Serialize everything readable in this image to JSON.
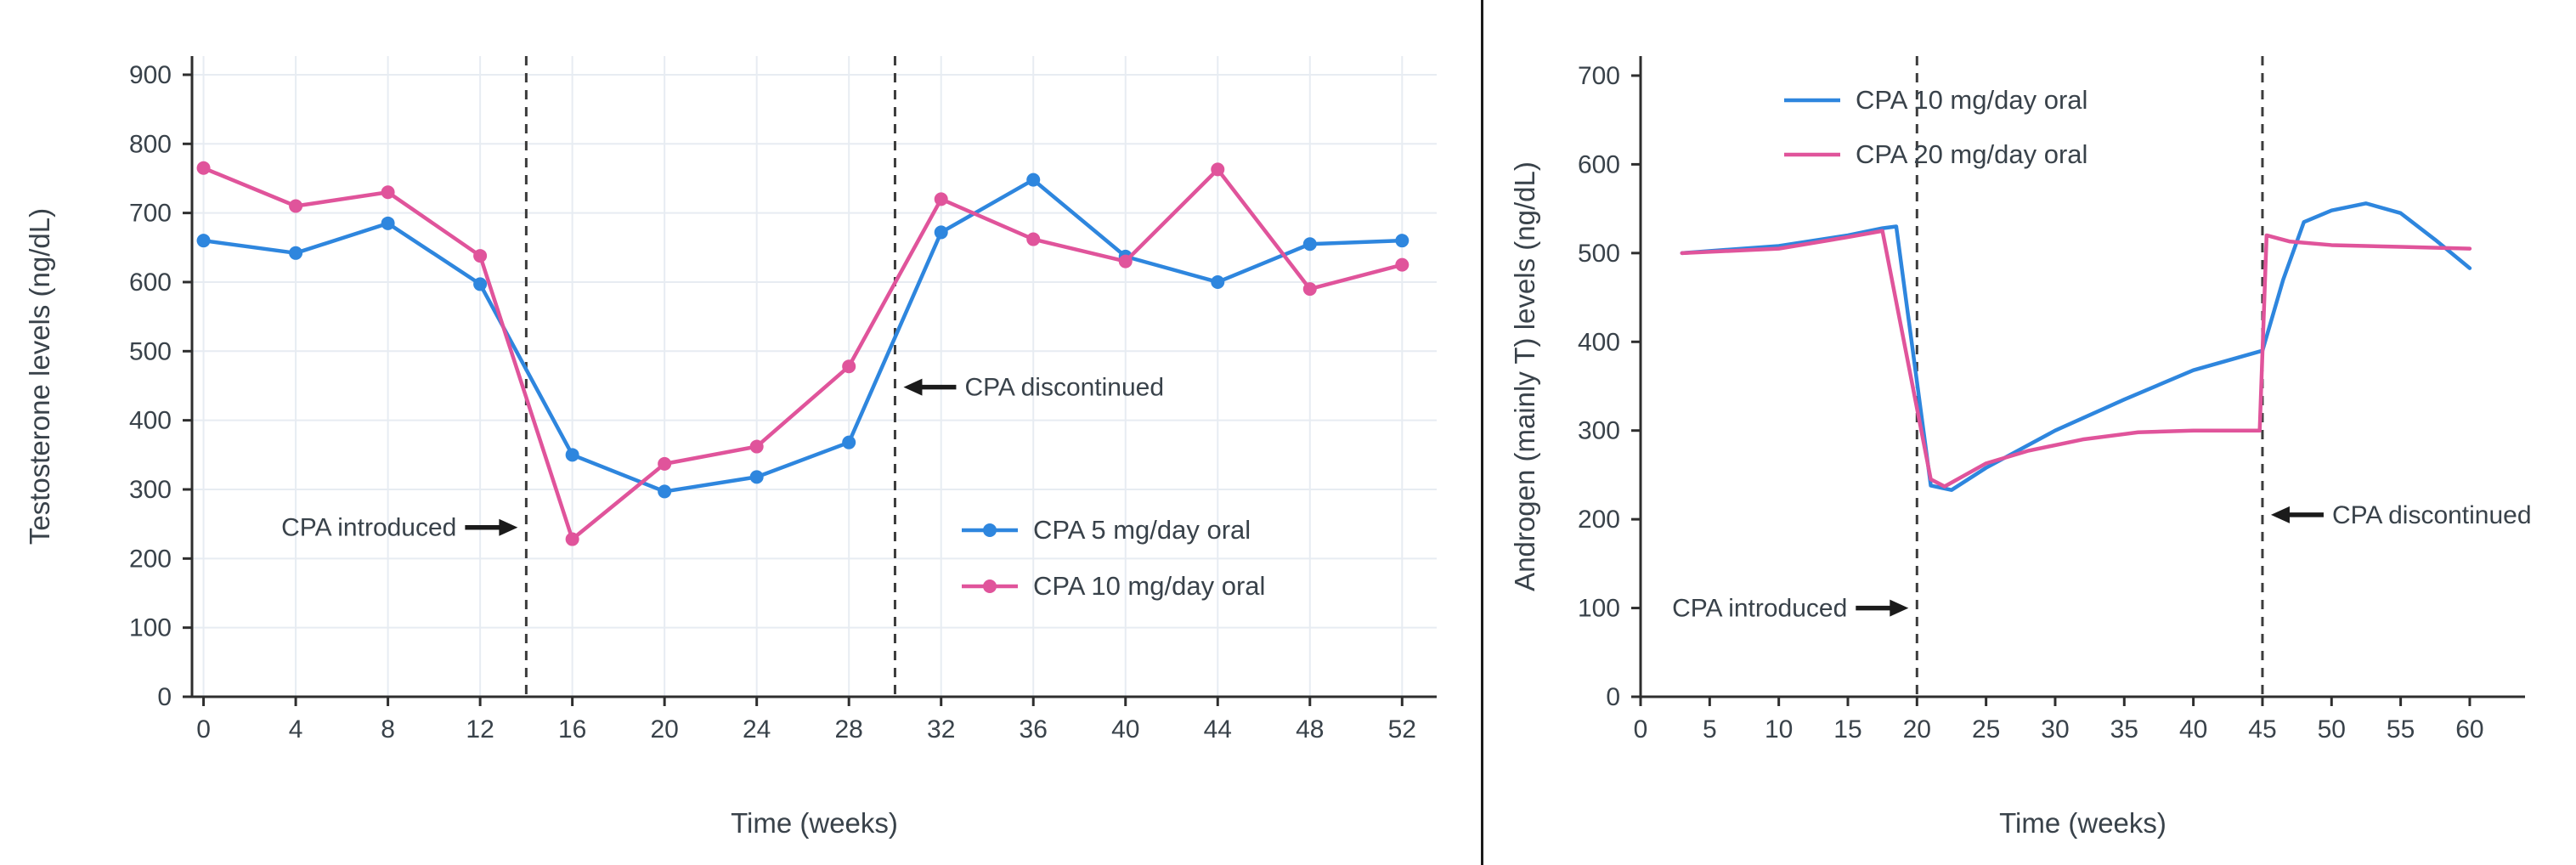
{
  "page": {
    "background": "#ffffff",
    "divider_color": "#1a1a1a",
    "text_color": "#39424a"
  },
  "chart_data": [
    {
      "type": "line",
      "title": "",
      "xlabel": "Time (weeks)",
      "ylabel": "Testosterone levels (ng/dL)",
      "xlim": [
        -0.5,
        53.5
      ],
      "ylim": [
        0,
        927
      ],
      "xticks": [
        0,
        4,
        8,
        12,
        16,
        20,
        24,
        28,
        32,
        36,
        40,
        44,
        48,
        52
      ],
      "yticks": [
        0,
        100,
        200,
        300,
        400,
        500,
        600,
        700,
        800,
        900
      ],
      "grid": true,
      "legend_position": "lower right",
      "vlines": [
        14,
        30
      ],
      "annotations": [
        {
          "text": "CPA introduced",
          "x": 14,
          "y": 245,
          "side": "left"
        },
        {
          "text": "CPA discontinued",
          "x": 30,
          "y": 448,
          "side": "right"
        }
      ],
      "series": [
        {
          "name": "CPA 5 mg/day oral",
          "color": "#2e86de",
          "markers": true,
          "x": [
            0,
            4,
            8,
            12,
            16,
            20,
            24,
            28,
            32,
            36,
            40,
            44,
            48,
            52
          ],
          "y": [
            660,
            642,
            685,
            597,
            350,
            297,
            318,
            368,
            672,
            748,
            637,
            600,
            655,
            660
          ]
        },
        {
          "name": "CPA 10 mg/day oral",
          "color": "#e0549b",
          "markers": true,
          "x": [
            0,
            4,
            8,
            12,
            16,
            20,
            24,
            28,
            32,
            36,
            40,
            44,
            48,
            52
          ],
          "y": [
            765,
            710,
            730,
            638,
            228,
            337,
            362,
            478,
            720,
            662,
            630,
            763,
            590,
            625
          ]
        }
      ]
    },
    {
      "type": "line",
      "title": "",
      "xlabel": "Time (weeks)",
      "ylabel": "Androgen (mainly T) levels (ng/dL)",
      "xlim": [
        0,
        64
      ],
      "ylim": [
        0,
        722
      ],
      "xticks": [
        0,
        5,
        10,
        15,
        20,
        25,
        30,
        35,
        40,
        45,
        50,
        55,
        60
      ],
      "yticks": [
        0,
        100,
        200,
        300,
        400,
        500,
        600,
        700
      ],
      "grid": false,
      "legend_position": "upper left",
      "vlines": [
        20,
        45
      ],
      "annotations": [
        {
          "text": "CPA introduced",
          "x": 20,
          "y": 100,
          "side": "left"
        },
        {
          "text": "CPA discontinued",
          "x": 45,
          "y": 205,
          "side": "right"
        }
      ],
      "series": [
        {
          "name": "CPA 10 mg/day oral",
          "color": "#2e86de",
          "markers": false,
          "x": [
            3,
            10,
            15,
            17.5,
            18.5,
            21,
            22.5,
            25,
            30,
            35,
            40,
            45,
            46.5,
            48,
            50,
            52.5,
            55,
            57.5,
            60
          ],
          "y": [
            500,
            508,
            520,
            528,
            530,
            238,
            233,
            258,
            300,
            335,
            368,
            390,
            470,
            535,
            548,
            556,
            545,
            515,
            483
          ]
        },
        {
          "name": "CPA 20 mg/day oral",
          "color": "#e0549b",
          "markers": false,
          "x": [
            3,
            10,
            15,
            17.5,
            21,
            22,
            25,
            28,
            32,
            36,
            40,
            44.8,
            45.3,
            47,
            50,
            55,
            60
          ],
          "y": [
            500,
            505,
            518,
            525,
            245,
            237,
            263,
            277,
            290,
            298,
            300,
            300,
            520,
            513,
            509,
            507,
            505
          ]
        }
      ]
    }
  ]
}
